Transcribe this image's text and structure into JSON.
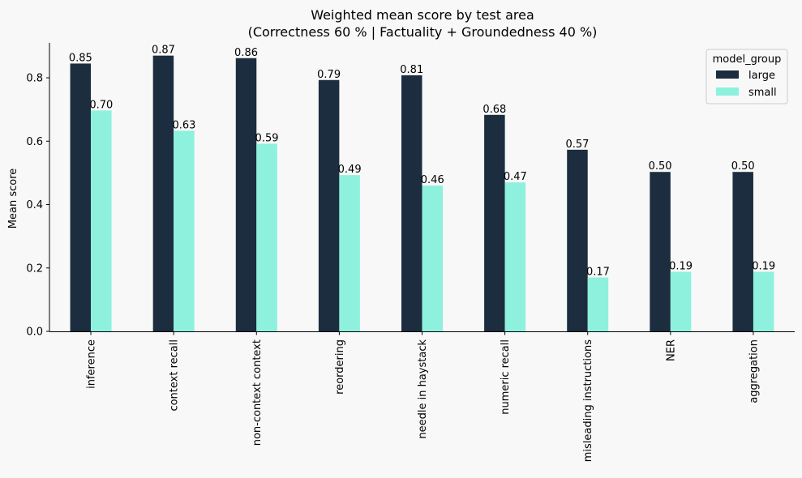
{
  "chart_data": {
    "type": "bar",
    "title": "Weighted mean score by test area",
    "subtitle": "(Correctness 60 %  |  Factuality + Groundedness 40 %)",
    "xlabel": "",
    "ylabel": "Mean score",
    "ylim": [
      0,
      0.91
    ],
    "yticks": [
      0.0,
      0.2,
      0.4,
      0.6,
      0.8
    ],
    "ytick_labels": [
      "0.0",
      "0.2",
      "0.4",
      "0.6",
      "0.8"
    ],
    "grid": false,
    "legend_position": "top-right",
    "legend_title": "model_group",
    "categories": [
      "inference",
      "context recall",
      "non-context context",
      "reordering",
      "needle in haystack",
      "numeric recall",
      "misleading instructions",
      "NER",
      "aggregation"
    ],
    "series": [
      {
        "name": "large",
        "color": "#1b2d3f",
        "values": [
          0.845,
          0.87,
          0.862,
          0.793,
          0.808,
          0.683,
          0.573,
          0.503,
          0.503
        ],
        "labels": [
          "0.85",
          "0.87",
          "0.86",
          "0.79",
          "0.81",
          "0.68",
          "0.57",
          "0.50",
          "0.50"
        ]
      },
      {
        "name": "small",
        "color": "#8ef1dd",
        "values": [
          0.697,
          0.633,
          0.592,
          0.493,
          0.46,
          0.47,
          0.17,
          0.188,
          0.188
        ],
        "labels": [
          "0.70",
          "0.63",
          "0.59",
          "0.49",
          "0.46",
          "0.47",
          "0.17",
          "0.19",
          "0.19"
        ]
      }
    ]
  }
}
